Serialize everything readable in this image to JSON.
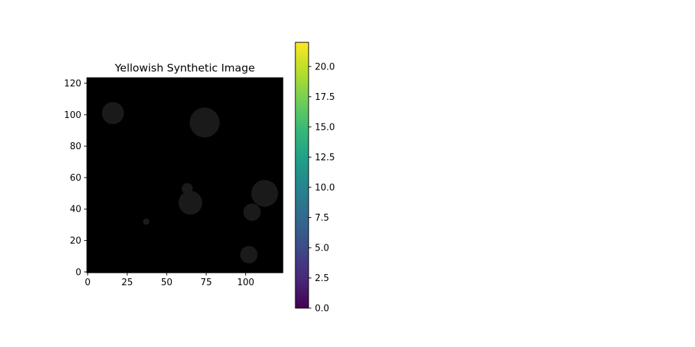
{
  "chart_data": {
    "type": "heatmap",
    "title": "Yellowish Synthetic Image",
    "xlabel": "",
    "ylabel": "",
    "image_size": [
      124,
      124
    ],
    "xlim": [
      -0.5,
      123.5
    ],
    "ylim": [
      123.5,
      -0.5
    ],
    "x_ticks": [
      0,
      25,
      50,
      75,
      100
    ],
    "y_ticks": [
      0,
      20,
      40,
      60,
      80,
      100,
      120
    ],
    "background_value": 0,
    "blobs": [
      {
        "cx": 102,
        "cy": 11,
        "r": 5.5,
        "value": 2.4
      },
      {
        "cx": 37,
        "cy": 32,
        "r": 2,
        "value": 2.4
      },
      {
        "cx": 104,
        "cy": 38,
        "r": 5.5,
        "value": 2.4
      },
      {
        "cx": 65,
        "cy": 44,
        "r": 7.5,
        "value": 2.4
      },
      {
        "cx": 63,
        "cy": 53,
        "r": 3.5,
        "value": 2.4
      },
      {
        "cx": 112,
        "cy": 50,
        "r": 8.5,
        "value": 2.4
      },
      {
        "cx": 74,
        "cy": 95,
        "r": 9.5,
        "value": 2.4
      },
      {
        "cx": 16,
        "cy": 101,
        "r": 7,
        "value": 2.4
      }
    ],
    "image_colors": {
      "background": "#000000",
      "blob": "#1a1a1a"
    },
    "colorbar": {
      "range": [
        0,
        22
      ],
      "ticks": [
        0.0,
        2.5,
        5.0,
        7.5,
        10.0,
        12.5,
        15.0,
        17.5,
        20.0
      ],
      "colormap": "viridis",
      "gradient_stops": [
        "#440154",
        "#482878",
        "#3e4989",
        "#31688e",
        "#26828e",
        "#1f9e89",
        "#35b779",
        "#6ece58",
        "#b5de2b",
        "#fde725"
      ]
    },
    "grid": false,
    "legend": "none"
  }
}
